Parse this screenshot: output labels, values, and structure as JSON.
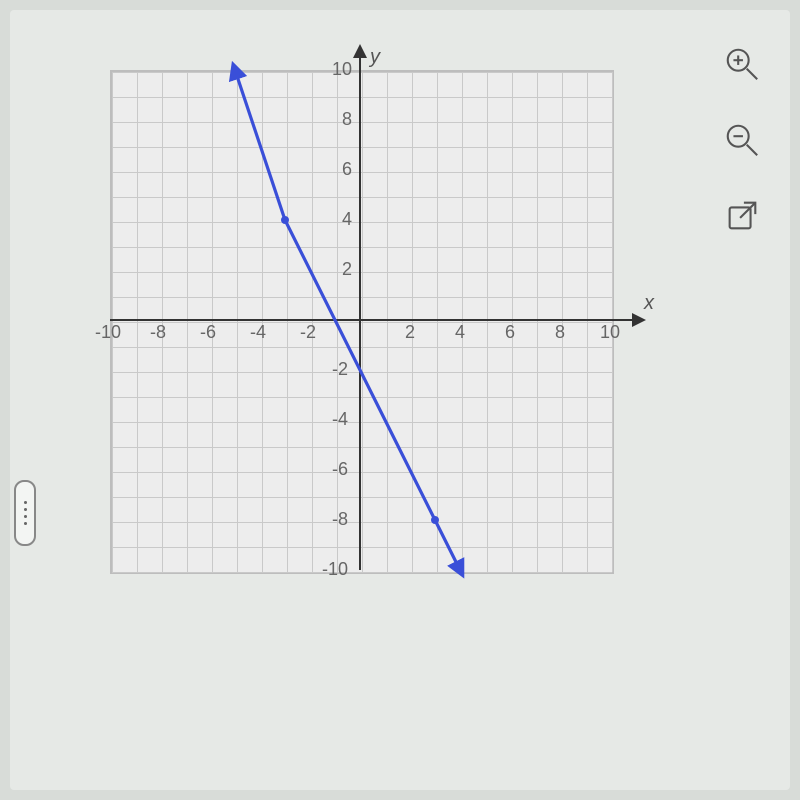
{
  "chart": {
    "type": "line",
    "xlim": [
      -10,
      10
    ],
    "ylim": [
      -10,
      10
    ],
    "xtick_step": 2,
    "ytick_step": 2,
    "grid_step": 1,
    "x_ticks": [
      -10,
      -8,
      -6,
      -4,
      -2,
      2,
      4,
      6,
      8,
      10
    ],
    "y_ticks": [
      -10,
      -8,
      -6,
      -4,
      -2,
      2,
      4,
      6,
      8,
      10
    ],
    "x_axis_label": "x",
    "y_axis_label": "y",
    "background_color": "#ededed",
    "grid_color": "#c9c9c9",
    "axis_color": "#333333",
    "tick_label_color": "#666666",
    "tick_label_fontsize": 18,
    "line": {
      "color": "#3a4fd8",
      "width": 3.2,
      "points": [
        {
          "x": -5,
          "y": 10
        },
        {
          "x": -3,
          "y": 4
        },
        {
          "x": 3,
          "y": -8
        },
        {
          "x": 4,
          "y": -10
        }
      ],
      "marker_points": [
        {
          "x": -3,
          "y": 4
        },
        {
          "x": 3,
          "y": -8
        }
      ],
      "marker_color": "#3a4fd8",
      "marker_radius": 4,
      "start_arrow": true,
      "end_arrow": true
    }
  },
  "tools": {
    "zoom_in": "zoom-in",
    "zoom_out": "zoom-out",
    "open_external": "open-in-new"
  },
  "page": {
    "bg_color": "#d8dcd8",
    "panel_bg": "#e6e9e6"
  }
}
